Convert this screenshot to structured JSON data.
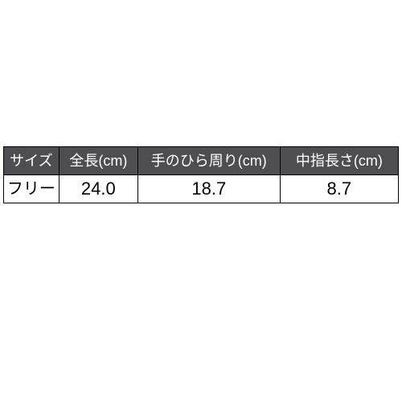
{
  "table": {
    "type": "table",
    "header_bg": "#4e4d52",
    "header_fg": "#ffffff",
    "body_bg": "#ffffff",
    "body_fg": "#000000",
    "border_color": "#000000",
    "columns": [
      {
        "label": "サイズ",
        "width_pct": 14
      },
      {
        "label": "全長(cm)",
        "width_pct": 20
      },
      {
        "label": "手のひら周り(cm)",
        "width_pct": 36
      },
      {
        "label": "中指長さ(cm)",
        "width_pct": 30
      }
    ],
    "rows": [
      [
        "フリー",
        "24.0",
        "18.7",
        "8.7"
      ]
    ]
  }
}
